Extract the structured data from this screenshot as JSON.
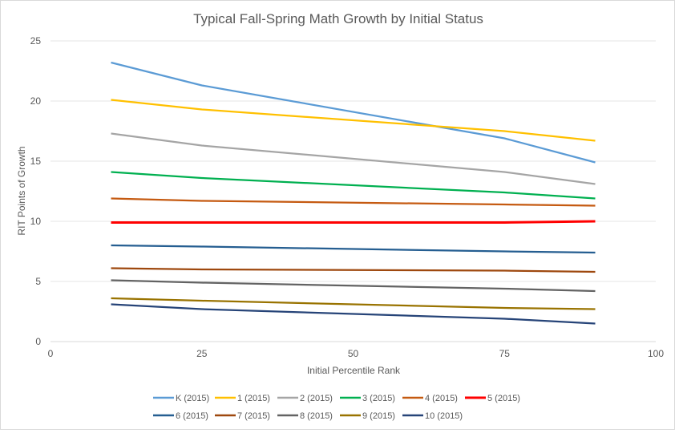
{
  "chart_data": {
    "type": "line",
    "title": "Typical Fall-Spring Math Growth by Initial Status",
    "xlabel": "Initial Percentile Rank",
    "ylabel": "RIT Points of Growth",
    "xlim": [
      0,
      100
    ],
    "ylim": [
      0,
      25
    ],
    "xticks": [
      0,
      25,
      50,
      75,
      100
    ],
    "yticks": [
      0,
      5,
      10,
      15,
      20,
      25
    ],
    "grid": "horizontal",
    "legend": "bottom",
    "x": [
      10,
      25,
      75,
      90
    ],
    "series": [
      {
        "name": "K (2015)",
        "color": "#5B9BD5",
        "values": [
          23.2,
          21.3,
          16.9,
          14.9
        ]
      },
      {
        "name": "1 (2015)",
        "color": "#FFC000",
        "values": [
          20.1,
          19.3,
          17.5,
          16.7
        ]
      },
      {
        "name": "2 (2015)",
        "color": "#A5A5A5",
        "values": [
          17.3,
          16.3,
          14.1,
          13.1
        ]
      },
      {
        "name": "3 (2015)",
        "color": "#00B050",
        "values": [
          14.1,
          13.6,
          12.4,
          11.9
        ]
      },
      {
        "name": "4 (2015)",
        "color": "#C55A11",
        "values": [
          11.9,
          11.7,
          11.4,
          11.3
        ]
      },
      {
        "name": "5 (2015)",
        "color": "#FF0000",
        "values": [
          9.9,
          9.9,
          9.9,
          10.0
        ]
      },
      {
        "name": "6 (2015)",
        "color": "#255E91",
        "values": [
          8.0,
          7.9,
          7.5,
          7.4
        ]
      },
      {
        "name": "7 (2015)",
        "color": "#9E480E",
        "values": [
          6.1,
          6.0,
          5.9,
          5.8
        ]
      },
      {
        "name": "8 (2015)",
        "color": "#636363",
        "values": [
          5.1,
          4.9,
          4.4,
          4.2
        ]
      },
      {
        "name": "9 (2015)",
        "color": "#997300",
        "values": [
          3.6,
          3.4,
          2.8,
          2.7
        ]
      },
      {
        "name": "10 (2015)",
        "color": "#264478",
        "values": [
          3.1,
          2.7,
          1.9,
          1.5
        ]
      }
    ]
  }
}
